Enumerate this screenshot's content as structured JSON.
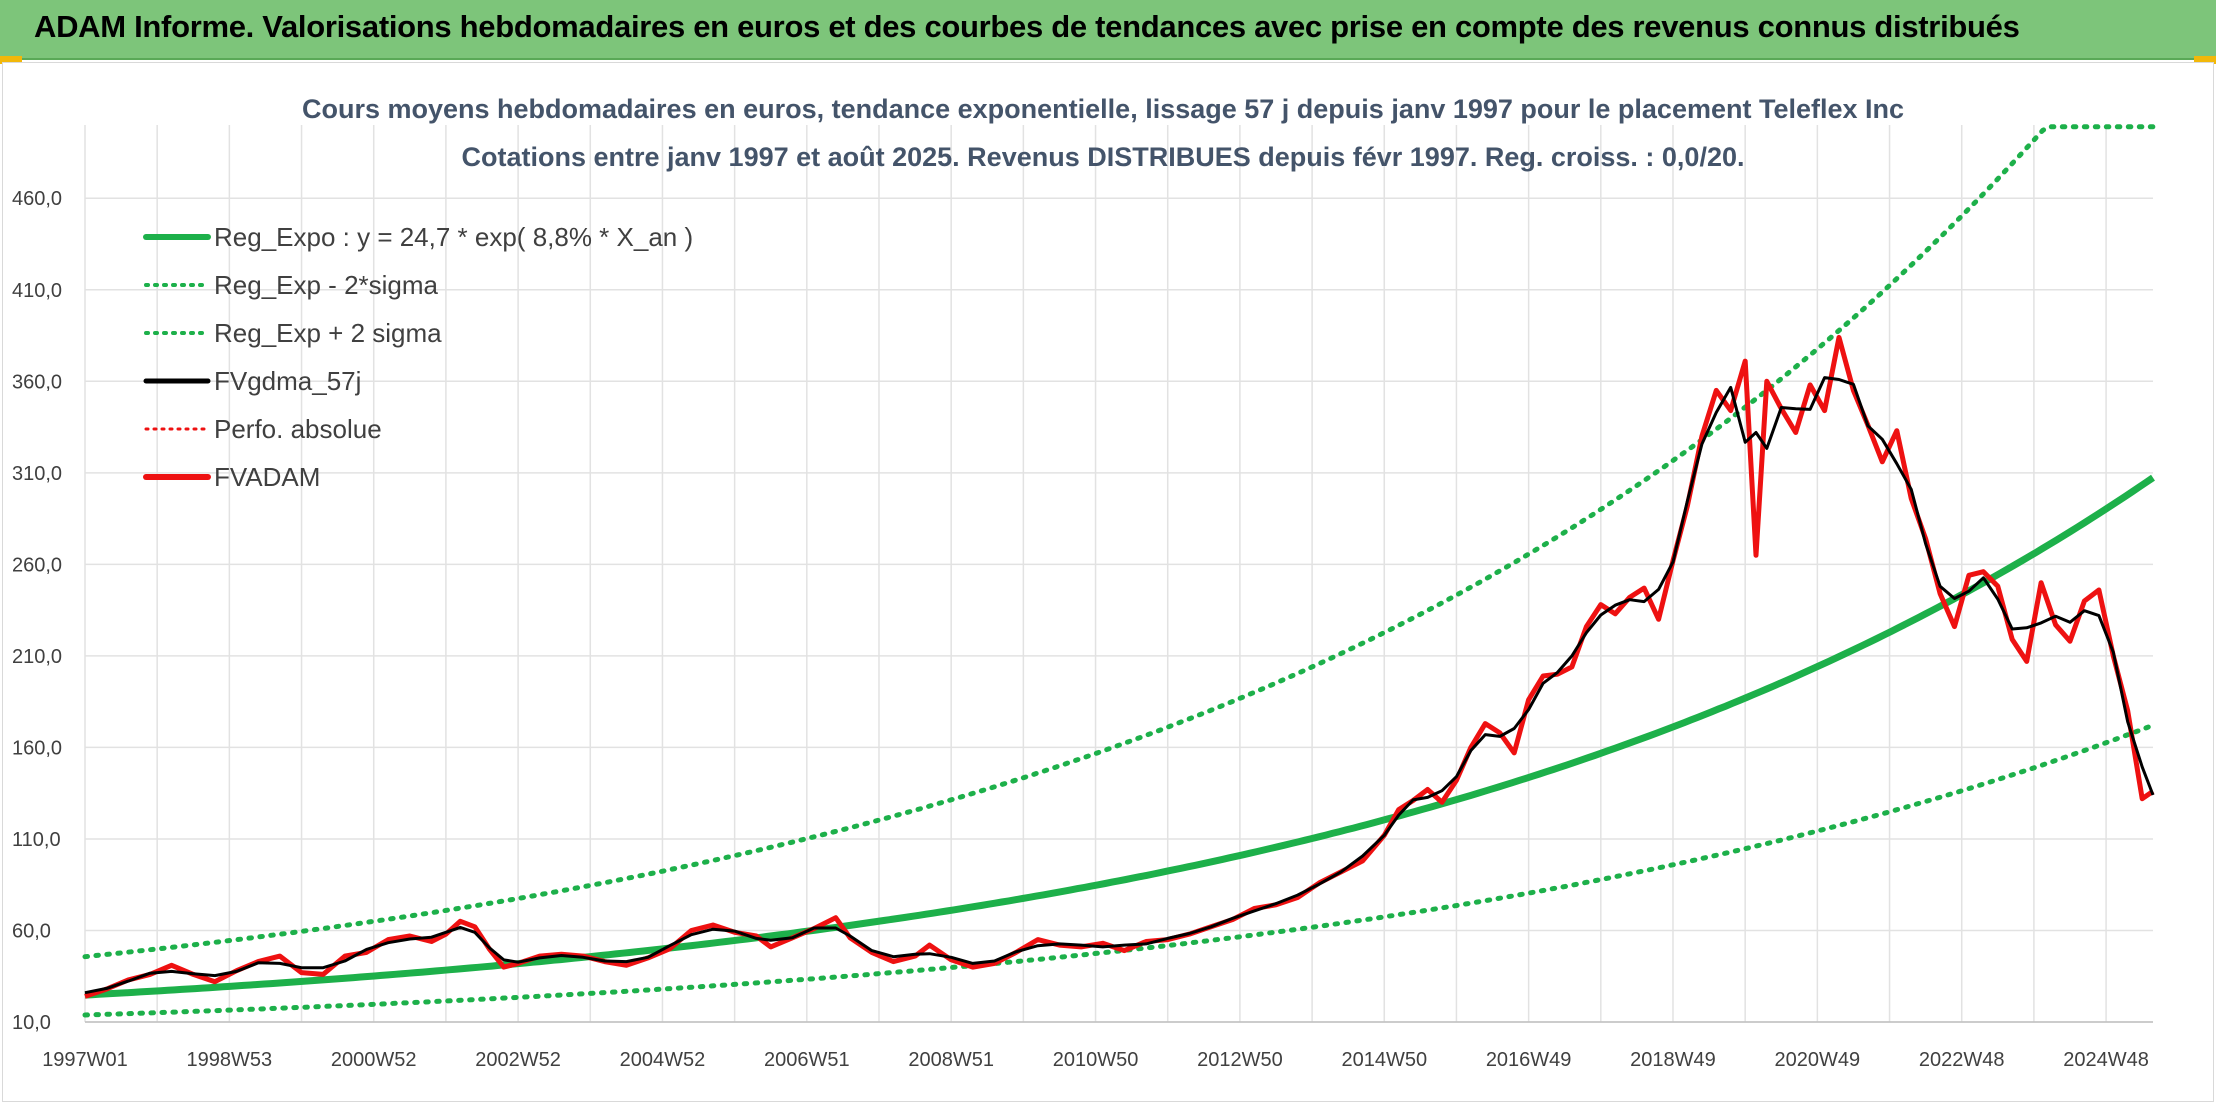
{
  "banner": {
    "title": "ADAM Informe. Valorisations hebdomadaires en euros et des courbes de tendances avec prise en compte des revenus connus distribués"
  },
  "colors": {
    "banner_bg": "#7dc57a",
    "reg_green": "#1db04a",
    "fvgdma": "#000000",
    "fvadam": "#ee1111",
    "perfo": "#ee1111",
    "grid": "#e2e2e2"
  },
  "chart_data": {
    "type": "line",
    "title_line1": "Cours moyens hebdomadaires en euros, tendance exponentielle, lissage 57 j depuis janv 1997 pour le placement Teleflex Inc",
    "title_line2": "Cotations entre janv 1997 et août 2025. Revenus DISTRIBUES depuis févr 1997. Reg. croiss. : 0,0/20.",
    "ylim": [
      10,
      500
    ],
    "y_ticks": [
      "10,0",
      "60,0",
      "110,0",
      "160,0",
      "210,0",
      "260,0",
      "310,0",
      "360,0",
      "410,0",
      "460,0"
    ],
    "x_range_years": [
      1997.0,
      2025.65
    ],
    "x_ticks": [
      {
        "label": "1997W01",
        "year": 1997.0
      },
      {
        "label": "1998W53",
        "year": 1999.0
      },
      {
        "label": "2000W52",
        "year": 2001.0
      },
      {
        "label": "2002W52",
        "year": 2003.0
      },
      {
        "label": "2004W52",
        "year": 2005.0
      },
      {
        "label": "2006W51",
        "year": 2007.0
      },
      {
        "label": "2008W51",
        "year": 2009.0
      },
      {
        "label": "2010W50",
        "year": 2011.0
      },
      {
        "label": "2012W50",
        "year": 2013.0
      },
      {
        "label": "2014W50",
        "year": 2015.0
      },
      {
        "label": "2016W49",
        "year": 2017.0
      },
      {
        "label": "2018W49",
        "year": 2019.0
      },
      {
        "label": "2020W49",
        "year": 2021.0
      },
      {
        "label": "2022W48",
        "year": 2023.0
      },
      {
        "label": "2024W48",
        "year": 2025.0
      }
    ],
    "legend_position": "top-left",
    "grid": true,
    "regression": {
      "a": 24.7,
      "rate": 0.088,
      "sigma_factor": 2,
      "minus_scale": 0.56,
      "plus_scale": 1.85,
      "cap": 499
    },
    "series": [
      {
        "name": "Reg_Expo : y = 24,7 * exp( 8,8% *  X_an )",
        "style": "solid-green-thick"
      },
      {
        "name": "Reg_Exp - 2*sigma",
        "style": "dotted-green"
      },
      {
        "name": "Reg_Exp + 2 sigma",
        "style": "dotted-green"
      },
      {
        "name": "FVgdma_57j",
        "style": "solid-black"
      },
      {
        "name": "Perfo. absolue",
        "style": "dotted-red"
      },
      {
        "name": "FVADAM",
        "style": "solid-red-thick",
        "points": [
          [
            1997.0,
            24
          ],
          [
            1997.3,
            28
          ],
          [
            1997.6,
            33
          ],
          [
            1997.9,
            36
          ],
          [
            1998.2,
            41
          ],
          [
            1998.5,
            36
          ],
          [
            1998.8,
            32
          ],
          [
            1999.1,
            38
          ],
          [
            1999.4,
            43
          ],
          [
            1999.7,
            46
          ],
          [
            2000.0,
            37
          ],
          [
            2000.3,
            36
          ],
          [
            2000.6,
            46
          ],
          [
            2000.9,
            48
          ],
          [
            2001.2,
            55
          ],
          [
            2001.5,
            57
          ],
          [
            2001.8,
            54
          ],
          [
            2002.0,
            58
          ],
          [
            2002.2,
            65
          ],
          [
            2002.4,
            62
          ],
          [
            2002.6,
            50
          ],
          [
            2002.8,
            40
          ],
          [
            2003.0,
            42
          ],
          [
            2003.3,
            46
          ],
          [
            2003.6,
            47
          ],
          [
            2003.9,
            46
          ],
          [
            2004.2,
            43
          ],
          [
            2004.5,
            41
          ],
          [
            2004.8,
            45
          ],
          [
            2005.1,
            50
          ],
          [
            2005.4,
            60
          ],
          [
            2005.7,
            63
          ],
          [
            2006.0,
            59
          ],
          [
            2006.3,
            57
          ],
          [
            2006.5,
            51
          ],
          [
            2006.8,
            56
          ],
          [
            2007.1,
            61
          ],
          [
            2007.4,
            67
          ],
          [
            2007.6,
            56
          ],
          [
            2007.9,
            48
          ],
          [
            2008.2,
            43
          ],
          [
            2008.5,
            46
          ],
          [
            2008.7,
            52
          ],
          [
            2009.0,
            44
          ],
          [
            2009.3,
            40
          ],
          [
            2009.6,
            42
          ],
          [
            2009.9,
            48
          ],
          [
            2010.2,
            55
          ],
          [
            2010.5,
            52
          ],
          [
            2010.8,
            51
          ],
          [
            2011.1,
            53
          ],
          [
            2011.4,
            49
          ],
          [
            2011.7,
            54
          ],
          [
            2012.0,
            55
          ],
          [
            2012.3,
            58
          ],
          [
            2012.6,
            62
          ],
          [
            2012.9,
            66
          ],
          [
            2013.2,
            72
          ],
          [
            2013.5,
            74
          ],
          [
            2013.8,
            78
          ],
          [
            2014.1,
            86
          ],
          [
            2014.4,
            92
          ],
          [
            2014.7,
            98
          ],
          [
            2015.0,
            112
          ],
          [
            2015.2,
            126
          ],
          [
            2015.4,
            131
          ],
          [
            2015.6,
            137
          ],
          [
            2015.8,
            130
          ],
          [
            2016.0,
            142
          ],
          [
            2016.2,
            160
          ],
          [
            2016.4,
            173
          ],
          [
            2016.6,
            168
          ],
          [
            2016.8,
            157
          ],
          [
            2017.0,
            186
          ],
          [
            2017.2,
            199
          ],
          [
            2017.4,
            200
          ],
          [
            2017.6,
            204
          ],
          [
            2017.8,
            226
          ],
          [
            2018.0,
            238
          ],
          [
            2018.2,
            233
          ],
          [
            2018.4,
            242
          ],
          [
            2018.6,
            247
          ],
          [
            2018.8,
            230
          ],
          [
            2019.0,
            262
          ],
          [
            2019.2,
            292
          ],
          [
            2019.4,
            330
          ],
          [
            2019.6,
            355
          ],
          [
            2019.8,
            344
          ],
          [
            2020.0,
            371
          ],
          [
            2020.15,
            265
          ],
          [
            2020.3,
            360
          ],
          [
            2020.5,
            345
          ],
          [
            2020.7,
            332
          ],
          [
            2020.9,
            358
          ],
          [
            2021.1,
            344
          ],
          [
            2021.3,
            384
          ],
          [
            2021.5,
            355
          ],
          [
            2021.7,
            336
          ],
          [
            2021.9,
            316
          ],
          [
            2022.1,
            333
          ],
          [
            2022.3,
            296
          ],
          [
            2022.5,
            274
          ],
          [
            2022.7,
            244
          ],
          [
            2022.9,
            226
          ],
          [
            2023.1,
            254
          ],
          [
            2023.3,
            256
          ],
          [
            2023.5,
            248
          ],
          [
            2023.7,
            219
          ],
          [
            2023.9,
            207
          ],
          [
            2024.1,
            250
          ],
          [
            2024.3,
            227
          ],
          [
            2024.5,
            218
          ],
          [
            2024.7,
            240
          ],
          [
            2024.9,
            246
          ],
          [
            2025.1,
            210
          ],
          [
            2025.3,
            180
          ],
          [
            2025.5,
            132
          ],
          [
            2025.65,
            136
          ]
        ]
      }
    ]
  }
}
